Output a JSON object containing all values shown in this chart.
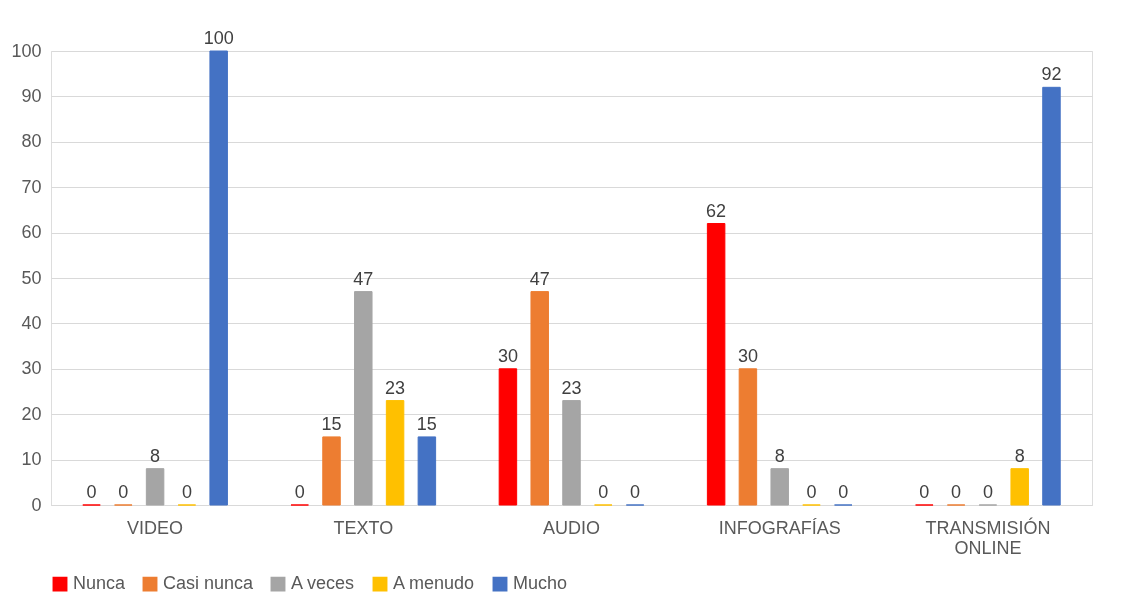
{
  "chart_data": {
    "type": "bar",
    "categories": [
      "VIDEO",
      "TEXTO",
      "AUDIO",
      "INFOGRAFÍAS",
      "TRANSMISIÓN ONLINE"
    ],
    "series": [
      {
        "name": "Nunca",
        "color": "#ff0000",
        "values": [
          0,
          0,
          30,
          62,
          0
        ]
      },
      {
        "name": "Casi nunca",
        "color": "#ed7d31",
        "values": [
          0,
          15,
          47,
          30,
          0
        ]
      },
      {
        "name": "A veces",
        "color": "#a5a5a5",
        "values": [
          8,
          47,
          23,
          8,
          0
        ]
      },
      {
        "name": "A menudo",
        "color": "#ffc000",
        "values": [
          0,
          23,
          0,
          0,
          8
        ]
      },
      {
        "name": "Mucho",
        "color": "#4472c4",
        "values": [
          100,
          15,
          0,
          0,
          92
        ]
      }
    ],
    "ylim": [
      0,
      100
    ],
    "yticks": [
      0,
      10,
      20,
      30,
      40,
      50,
      60,
      70,
      80,
      90,
      100
    ],
    "grid": "y",
    "legend": "bottom",
    "data_labels": true
  }
}
